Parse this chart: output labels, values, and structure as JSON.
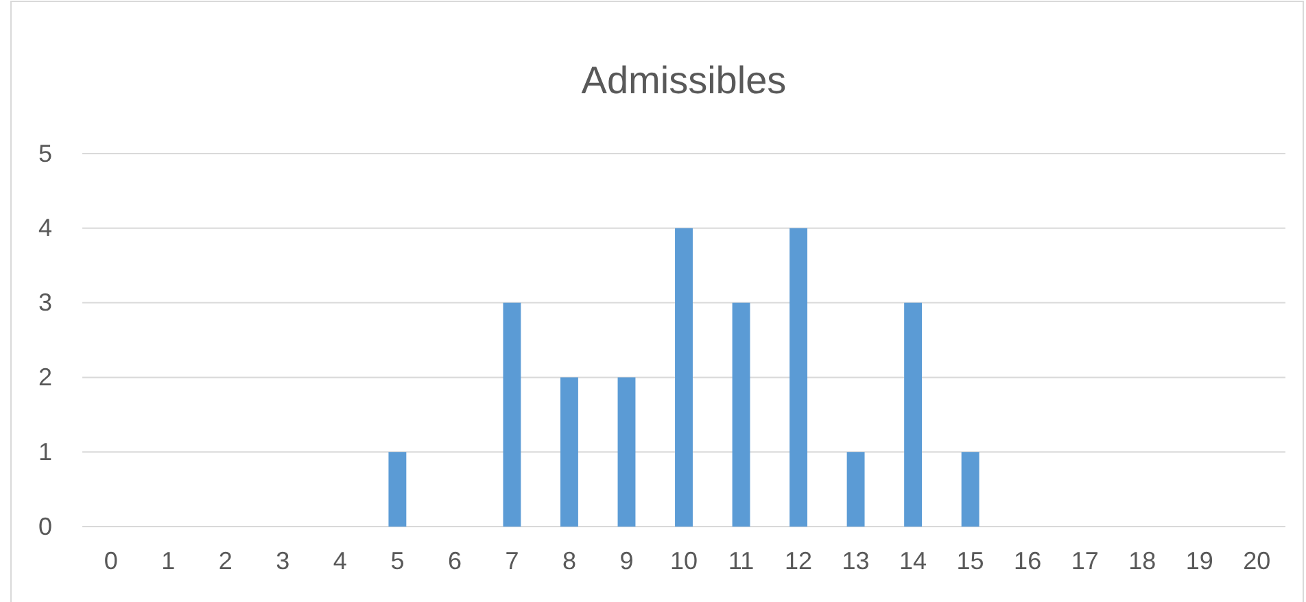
{
  "chart_data": {
    "type": "bar",
    "title": "Admissibles",
    "categories": [
      "0",
      "1",
      "2",
      "3",
      "4",
      "5",
      "6",
      "7",
      "8",
      "9",
      "10",
      "11",
      "12",
      "13",
      "14",
      "15",
      "16",
      "17",
      "18",
      "19",
      "20"
    ],
    "values": [
      0,
      0,
      0,
      0,
      0,
      1,
      0,
      3,
      2,
      2,
      4,
      3,
      4,
      1,
      3,
      1,
      0,
      0,
      0,
      0,
      0
    ],
    "color": "#5b9bd5",
    "ylim": [
      0,
      5
    ],
    "yticks": [
      0,
      1,
      2,
      3,
      4,
      5
    ],
    "grid": "y"
  }
}
